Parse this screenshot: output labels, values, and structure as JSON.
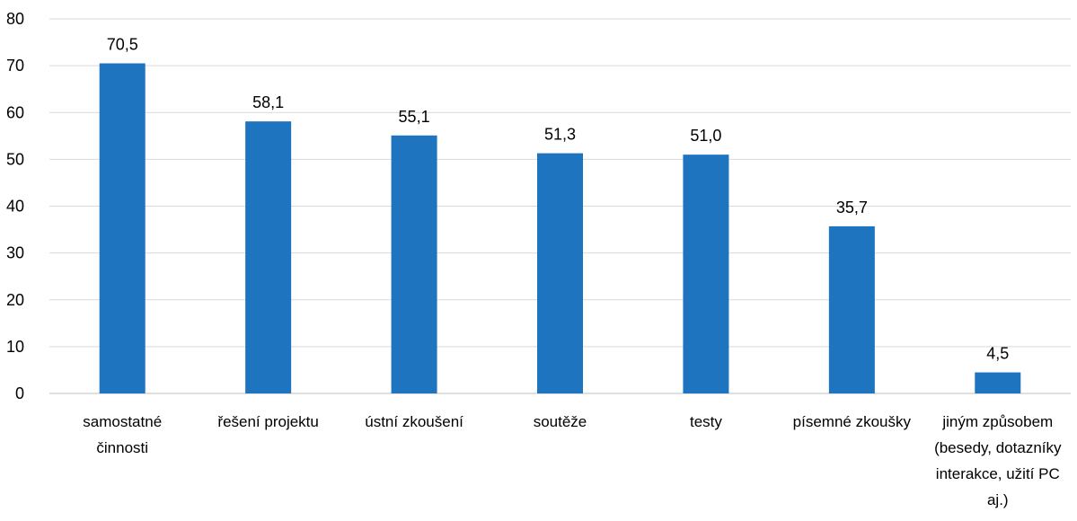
{
  "chart_data": {
    "type": "bar",
    "categories": [
      [
        "samostatné",
        "činnosti"
      ],
      [
        "řešení projektu"
      ],
      [
        "ústní zkoušení"
      ],
      [
        "soutěže"
      ],
      [
        "testy"
      ],
      [
        "písemné zkoušky"
      ],
      [
        "jiným způsobem",
        "(besedy, dotazníky",
        "interakce, užití PC",
        "aj.)"
      ]
    ],
    "values": [
      70.5,
      58.1,
      55.1,
      51.3,
      51.0,
      35.7,
      4.5
    ],
    "value_labels": [
      "70,5",
      "58,1",
      "55,1",
      "51,3",
      "51,0",
      "35,7",
      "4,5"
    ],
    "ylim": [
      0,
      80
    ],
    "yticks": [
      0,
      10,
      20,
      30,
      40,
      50,
      60,
      70,
      80
    ],
    "title": "",
    "xlabel": "",
    "ylabel": "",
    "grid": true,
    "bar_color": "#1f74c0",
    "grid_color": "#d9d9d9"
  }
}
